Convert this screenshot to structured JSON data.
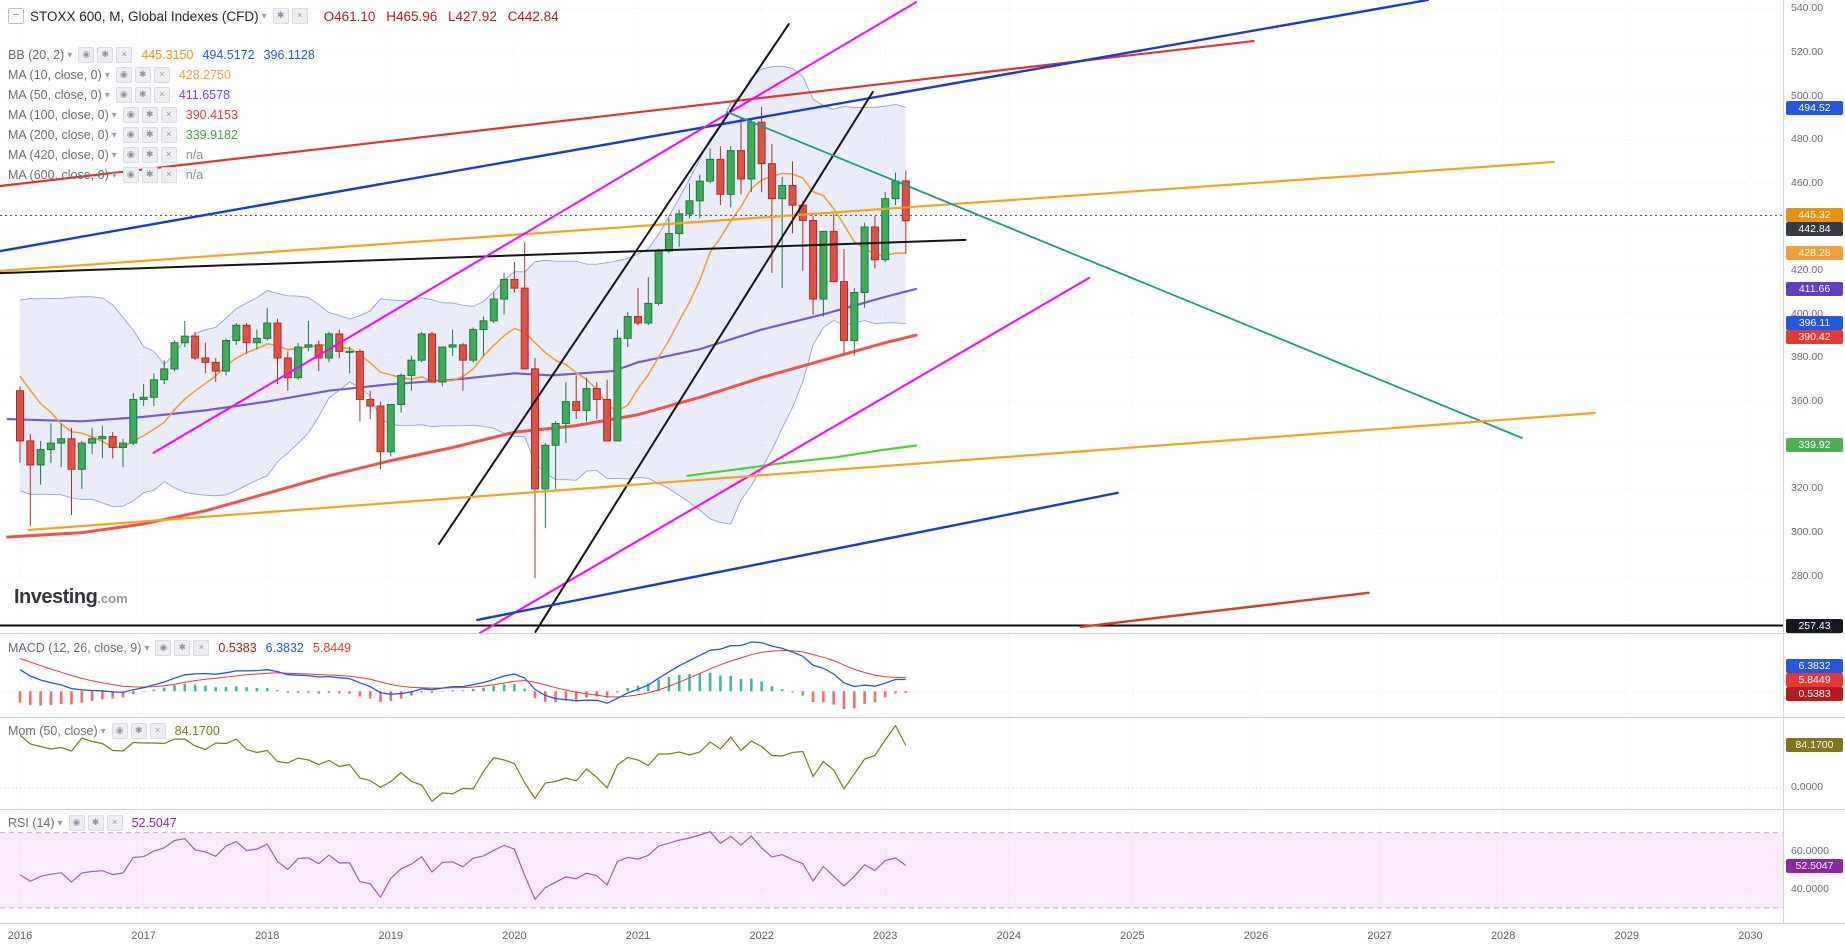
{
  "icons": {
    "collapse": "−",
    "caret": "▾",
    "eye": "◉",
    "gear": "✱",
    "close": "×"
  },
  "header": {
    "title": "STOXX 600, M, Global Indexes (CFD)",
    "ohlc_color": "#9e1f1f",
    "ohlc": [
      {
        "label": "O",
        "value": "461.10"
      },
      {
        "label": "H",
        "value": "465.96"
      },
      {
        "label": "L",
        "value": "427.92"
      },
      {
        "label": "C",
        "value": "442.84"
      }
    ],
    "indicators": [
      {
        "name": "BB (20, 2)",
        "values": [
          {
            "text": "445.3150",
            "color": "#e8930c"
          },
          {
            "text": "494.5172",
            "color": "#2456e4"
          },
          {
            "text": "396.1128",
            "color": "#2456e4"
          }
        ]
      },
      {
        "name": "MA (10, close, 0)",
        "values": [
          {
            "text": "428.2750",
            "color": "#efa036"
          }
        ]
      },
      {
        "name": "MA (50, close, 0)",
        "values": [
          {
            "text": "411.6578",
            "color": "#6b47c9"
          }
        ]
      },
      {
        "name": "MA (100, close, 0)",
        "values": [
          {
            "text": "390.4153",
            "color": "#e53935"
          }
        ]
      },
      {
        "name": "MA (200, close, 0)",
        "values": [
          {
            "text": "339.9182",
            "color": "#43a047"
          }
        ]
      },
      {
        "name": "MA (420, close, 0)",
        "values": [
          {
            "text": "n/a",
            "color": "#8a8d99"
          }
        ]
      },
      {
        "name": "MA (600, close, 0)",
        "values": [
          {
            "text": "n/a",
            "color": "#8a8d99"
          }
        ]
      }
    ]
  },
  "watermark": {
    "brand": "Investing",
    "suffix": ".com"
  },
  "price_axis": {
    "ticks": [
      "540.00",
      "520.00",
      "500.00",
      "480.00",
      "460.00",
      "440.00",
      "420.00",
      "400.00",
      "380.00",
      "360.00",
      "340.00",
      "320.00",
      "300.00",
      "280.00"
    ],
    "badges": [
      {
        "text": "494.52",
        "price": 494.52,
        "color": "#2456e4"
      },
      {
        "text": "445.32",
        "price": 445.32,
        "color": "#e8930c"
      },
      {
        "text": "442.84",
        "price": 442.84,
        "color": "#363a45"
      },
      {
        "text": "428.28",
        "price": 428.28,
        "color": "#efa036"
      },
      {
        "text": "411.66",
        "price": 411.66,
        "color": "#5f3dc4"
      },
      {
        "text": "396.11",
        "price": 396.11,
        "color": "#2456e4"
      },
      {
        "text": "390.42",
        "price": 390.42,
        "color": "#e53935"
      },
      {
        "text": "339.92",
        "price": 339.92,
        "color": "#4caf50"
      },
      {
        "text": "257.43",
        "price": 257.43,
        "color": "#15181e"
      }
    ]
  },
  "time_axis": {
    "years": [
      "2016",
      "2017",
      "2018",
      "2019",
      "2020",
      "2021",
      "2022",
      "2023",
      "2024",
      "2025",
      "2026",
      "2027",
      "2028",
      "2029",
      "2030"
    ]
  },
  "panes": {
    "macd": {
      "legend": "MACD (12, 26, close, 9)",
      "values": [
        {
          "text": "0.5383",
          "color": "#b71c1c"
        },
        {
          "text": "6.3832",
          "color": "#2456e4"
        },
        {
          "text": "5.8449",
          "color": "#e53935"
        }
      ],
      "badges": [
        {
          "text": "6.3832",
          "color": "#2456e4"
        },
        {
          "text": "5.8449",
          "color": "#e53935"
        },
        {
          "text": "0.5383",
          "color": "#b71c1c"
        }
      ]
    },
    "mom": {
      "legend": "Mom (50, close)",
      "values": [
        {
          "text": "84.1700",
          "color": "#7c7a1e"
        }
      ],
      "badge": {
        "text": "84.1700",
        "color": "#827717"
      },
      "zero_label": "0.0000"
    },
    "rsi": {
      "legend": "RSI (14)",
      "values": [
        {
          "text": "52.5047",
          "color": "#8e24aa"
        }
      ],
      "badge": {
        "text": "52.5047",
        "color": "#8e24aa"
      },
      "tick_labels": [
        "60.0000",
        "40.0000"
      ],
      "tick_values": [
        60,
        40
      ]
    }
  },
  "chart_data": {
    "type": "candlestick",
    "title": "STOXX 600, M, Global Indexes (CFD)",
    "symbol": "STOXX 600",
    "timeframe": "M",
    "current_ohlc": {
      "open": 461.1,
      "high": 465.96,
      "low": 427.92,
      "close": 442.84
    },
    "indicator_last_values": {
      "bb_basis": 445.315,
      "bb_upper": 494.5172,
      "bb_lower": 396.1128,
      "ma10": 428.275,
      "ma50": 411.6578,
      "ma100": 390.4153,
      "ma200": 339.9182,
      "ma420": null,
      "ma600": null,
      "macd": 6.3832,
      "macd_signal": 5.8449,
      "macd_hist": 0.5383,
      "mom50": 84.17,
      "rsi14": 52.5047
    },
    "start_month": "2016-01",
    "candles": [
      [
        365,
        367,
        332,
        342
      ],
      [
        342,
        345,
        303,
        331
      ],
      [
        331,
        342,
        322,
        338
      ],
      [
        338,
        350,
        332,
        341
      ],
      [
        341,
        350,
        330,
        343
      ],
      [
        343,
        348,
        308,
        329
      ],
      [
        329,
        342,
        320,
        341
      ],
      [
        341,
        348,
        336,
        343
      ],
      [
        343,
        349,
        334,
        344
      ],
      [
        344,
        346,
        334,
        339
      ],
      [
        339,
        343,
        330,
        341
      ],
      [
        341,
        364,
        340,
        361
      ],
      [
        361,
        368,
        358,
        362
      ],
      [
        362,
        373,
        358,
        370
      ],
      [
        370,
        379,
        368,
        375
      ],
      [
        375,
        388,
        374,
        387
      ],
      [
        387,
        397,
        385,
        390
      ],
      [
        390,
        392,
        379,
        380
      ],
      [
        380,
        387,
        373,
        378
      ],
      [
        378,
        380,
        369,
        374
      ],
      [
        374,
        389,
        372,
        388
      ],
      [
        388,
        396,
        386,
        395
      ],
      [
        395,
        396,
        382,
        387
      ],
      [
        387,
        393,
        384,
        389
      ],
      [
        389,
        403,
        388,
        396
      ],
      [
        396,
        398,
        368,
        380
      ],
      [
        380,
        383,
        365,
        371
      ],
      [
        371,
        387,
        370,
        385
      ],
      [
        385,
        397,
        383,
        386
      ],
      [
        386,
        388,
        374,
        380
      ],
      [
        380,
        392,
        378,
        391
      ],
      [
        391,
        393,
        380,
        383
      ],
      [
        383,
        385,
        373,
        383
      ],
      [
        383,
        384,
        351,
        361
      ],
      [
        361,
        365,
        352,
        358
      ],
      [
        358,
        360,
        329,
        337
      ],
      [
        337,
        359,
        335,
        358.67
      ],
      [
        358.67,
        373,
        355,
        372
      ],
      [
        372,
        381,
        365,
        379
      ],
      [
        379,
        392,
        378,
        391
      ],
      [
        391,
        392,
        369,
        369
      ],
      [
        369,
        385,
        367,
        385
      ],
      [
        385,
        393,
        381,
        386
      ],
      [
        386,
        387,
        365,
        379
      ],
      [
        379,
        394,
        378,
        393
      ],
      [
        393,
        399,
        381,
        397
      ],
      [
        397,
        410,
        396,
        407
      ],
      [
        407,
        419,
        400,
        416
      ],
      [
        416,
        424,
        410,
        412
      ],
      [
        412,
        433,
        375,
        375
      ],
      [
        375,
        380,
        279,
        320
      ],
      [
        320,
        341,
        302,
        340
      ],
      [
        340,
        351,
        320,
        350
      ],
      [
        350,
        369,
        341,
        360
      ],
      [
        360,
        372,
        352,
        356
      ],
      [
        356,
        371,
        351,
        366
      ],
      [
        366,
        369,
        352,
        361
      ],
      [
        361,
        370,
        342,
        342
      ],
      [
        342,
        393,
        342,
        389
      ],
      [
        389,
        401,
        385,
        399
      ],
      [
        399,
        412,
        395,
        396
      ],
      [
        396,
        417,
        395,
        405
      ],
      [
        405,
        430,
        404,
        429
      ],
      [
        429,
        444,
        428,
        437
      ],
      [
        437,
        448,
        431,
        446
      ],
      [
        446,
        460,
        444,
        452
      ],
      [
        452,
        464,
        444,
        461
      ],
      [
        461,
        476,
        460,
        471
      ],
      [
        471,
        477,
        450,
        455
      ],
      [
        455,
        477,
        449,
        475
      ],
      [
        475,
        490,
        455,
        462
      ],
      [
        462,
        489,
        456,
        488
      ],
      [
        488,
        495,
        456,
        469
      ],
      [
        469,
        478,
        419,
        453
      ],
      [
        453,
        463,
        412,
        459
      ],
      [
        459,
        470,
        437,
        450
      ],
      [
        450,
        452,
        420,
        443
      ],
      [
        443,
        445,
        400,
        407
      ],
      [
        407,
        438,
        399,
        438
      ],
      [
        438,
        446,
        415,
        415
      ],
      [
        415,
        430,
        382,
        388
      ],
      [
        388,
        412,
        381,
        410
      ],
      [
        410,
        442,
        403,
        440
      ],
      [
        440,
        445,
        421,
        425
      ],
      [
        425,
        456,
        424,
        453
      ],
      [
        453,
        465,
        450,
        461
      ],
      [
        461.1,
        465.96,
        427.92,
        442.84
      ]
    ],
    "pre_2016_closes_for_indicators": [
      237,
      244,
      256,
      264,
      263,
      256,
      242,
      251,
      256,
      265,
      268,
      271,
      273,
      281,
      287,
      290,
      293,
      297,
      302,
      285,
      300,
      298,
      311,
      319,
      322,
      328,
      322,
      326,
      331,
      334,
      337,
      341,
      337,
      342,
      344,
      337,
      347,
      342,
      367,
      386,
      397,
      396,
      399,
      381,
      396,
      365,
      347,
      361,
      364,
      366
    ],
    "overlays": {
      "bb": {
        "period": 20,
        "stdev": 2,
        "fill": "rgba(96,112,214,0.13)",
        "edge": "rgba(70,90,190,0.5)"
      },
      "ma10": {
        "period": 10,
        "color": "#efa036"
      },
      "ma50": {
        "color": "#7a5cd0",
        "points": [
          [
            2015.9,
            352
          ],
          [
            2016.5,
            351
          ],
          [
            2017,
            353
          ],
          [
            2017.5,
            356
          ],
          [
            2018,
            360
          ],
          [
            2018.5,
            365
          ],
          [
            2019,
            368
          ],
          [
            2019.5,
            370
          ],
          [
            2020,
            373
          ],
          [
            2020.3,
            372
          ],
          [
            2020.8,
            374
          ],
          [
            2021,
            378
          ],
          [
            2021.5,
            384
          ],
          [
            2022,
            393
          ],
          [
            2022.5,
            400
          ],
          [
            2023,
            408
          ],
          [
            2023.25,
            411.66
          ]
        ]
      },
      "ma100": {
        "color": "#ef5350",
        "points": [
          [
            2015.9,
            298
          ],
          [
            2016.5,
            300
          ],
          [
            2017,
            304
          ],
          [
            2017.5,
            310
          ],
          [
            2018,
            318
          ],
          [
            2018.5,
            326
          ],
          [
            2019,
            333
          ],
          [
            2019.5,
            339
          ],
          [
            2020,
            346
          ],
          [
            2020.5,
            349
          ],
          [
            2021,
            354
          ],
          [
            2021.5,
            362
          ],
          [
            2022,
            371
          ],
          [
            2022.5,
            379
          ],
          [
            2023,
            387
          ],
          [
            2023.25,
            390.42
          ]
        ]
      },
      "ma200": {
        "color": "#44d62a",
        "points": [
          [
            2021.4,
            326
          ],
          [
            2021.8,
            329
          ],
          [
            2022.2,
            332
          ],
          [
            2022.6,
            334.5
          ],
          [
            2023,
            338
          ],
          [
            2023.25,
            339.92
          ]
        ]
      }
    },
    "trend_lines": [
      {
        "name": "red-resistance",
        "color": "#e53131",
        "width": 2.2,
        "from": [
          2015.84,
          458.8
        ],
        "to": [
          2025.98,
          525.2
        ]
      },
      {
        "name": "blue-upper",
        "color": "#1c39d6",
        "width": 2.4,
        "from": [
          2015.84,
          429
        ],
        "to": [
          2027.39,
          544
        ]
      },
      {
        "name": "orange-upper",
        "color": "#f6a21a",
        "width": 2.2,
        "from": [
          2015.84,
          419.9
        ],
        "to": [
          2028.41,
          469.8
        ]
      },
      {
        "name": "black-horizontal",
        "color": "#141414",
        "width": 2,
        "from": [
          2015.84,
          418.9
        ],
        "to": [
          2023.65,
          434.1
        ]
      },
      {
        "name": "magenta-long",
        "color": "#ff00ff",
        "width": 2,
        "from": [
          2017.08,
          336.5
        ],
        "to": [
          2023.25,
          543
        ]
      },
      {
        "name": "magenta-lower",
        "color": "#ff00ff",
        "width": 2,
        "from": [
          2019.72,
          254
        ],
        "to": [
          2024.65,
          416.7
        ]
      },
      {
        "name": "black-steep-left",
        "color": "#141414",
        "width": 2,
        "from": [
          2019.39,
          294.8
        ],
        "to": [
          2022.22,
          533
        ]
      },
      {
        "name": "black-steep-right",
        "color": "#141414",
        "width": 2,
        "from": [
          2020.17,
          254.5
        ],
        "to": [
          2022.9,
          501.9
        ]
      },
      {
        "name": "teal-decline",
        "color": "#1d9b88",
        "width": 1.8,
        "from": [
          2021.72,
          492.7
        ],
        "to": [
          2028.15,
          343.4
        ]
      },
      {
        "name": "blue-lower",
        "color": "#1c39d6",
        "width": 2.4,
        "from": [
          2019.7,
          260
        ],
        "to": [
          2024.88,
          318.2
        ]
      },
      {
        "name": "red-lower",
        "color": "#d23f31",
        "width": 2.4,
        "from": [
          2024.58,
          256.8
        ],
        "to": [
          2026.91,
          272.4
        ]
      },
      {
        "name": "orange-lower",
        "color": "#f6a21a",
        "width": 2.2,
        "from": [
          2016.07,
          301.2
        ],
        "to": [
          2028.74,
          354.8
        ]
      }
    ],
    "levels": [
      {
        "price": 445.32,
        "color": "#4a4a4a",
        "style": "dotted",
        "width": 1
      },
      {
        "price": 257.43,
        "color": "#0a0a0a",
        "style": "solid",
        "width": 2
      }
    ],
    "indicators": {
      "macd": {
        "fast": 12,
        "slow": 26,
        "signal": 9
      },
      "mom": {
        "period": 50
      },
      "rsi": {
        "period": 14,
        "bands": [
          70,
          30
        ]
      }
    }
  }
}
